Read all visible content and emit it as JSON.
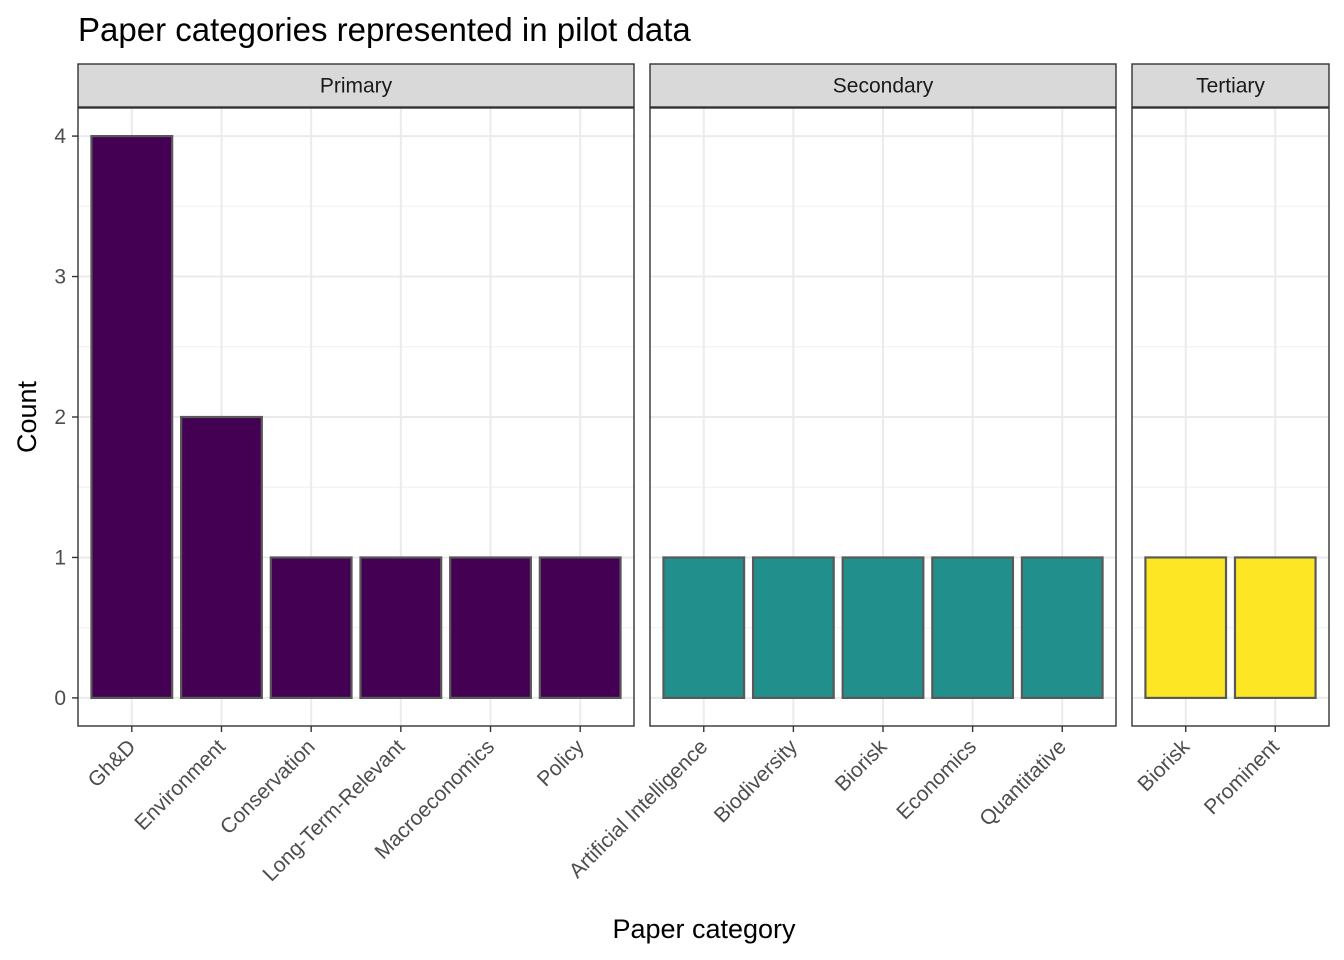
{
  "chart_data": {
    "type": "bar",
    "title": "Paper categories represented in pilot data",
    "xlabel": "Paper category",
    "ylabel": "Count",
    "ylim": [
      0,
      4
    ],
    "yticks": [
      0,
      1,
      2,
      3,
      4
    ],
    "grid": true,
    "facets": [
      {
        "name": "Primary",
        "color": "#440154",
        "categories": [
          "Gh&D",
          "Environment",
          "Conservation",
          "Long-Term-Relevant",
          "Macroeconomics",
          "Policy"
        ],
        "values": [
          4,
          2,
          1,
          1,
          1,
          1
        ]
      },
      {
        "name": "Secondary",
        "color": "#21908C",
        "categories": [
          "Artificial Intelligence",
          "Biodiversity",
          "Biorisk",
          "Economics",
          "Quantitative"
        ],
        "values": [
          1,
          1,
          1,
          1,
          1
        ]
      },
      {
        "name": "Tertiary",
        "color": "#FDE725",
        "categories": [
          "Biorisk",
          "Prominent"
        ],
        "values": [
          1,
          1
        ]
      }
    ]
  }
}
